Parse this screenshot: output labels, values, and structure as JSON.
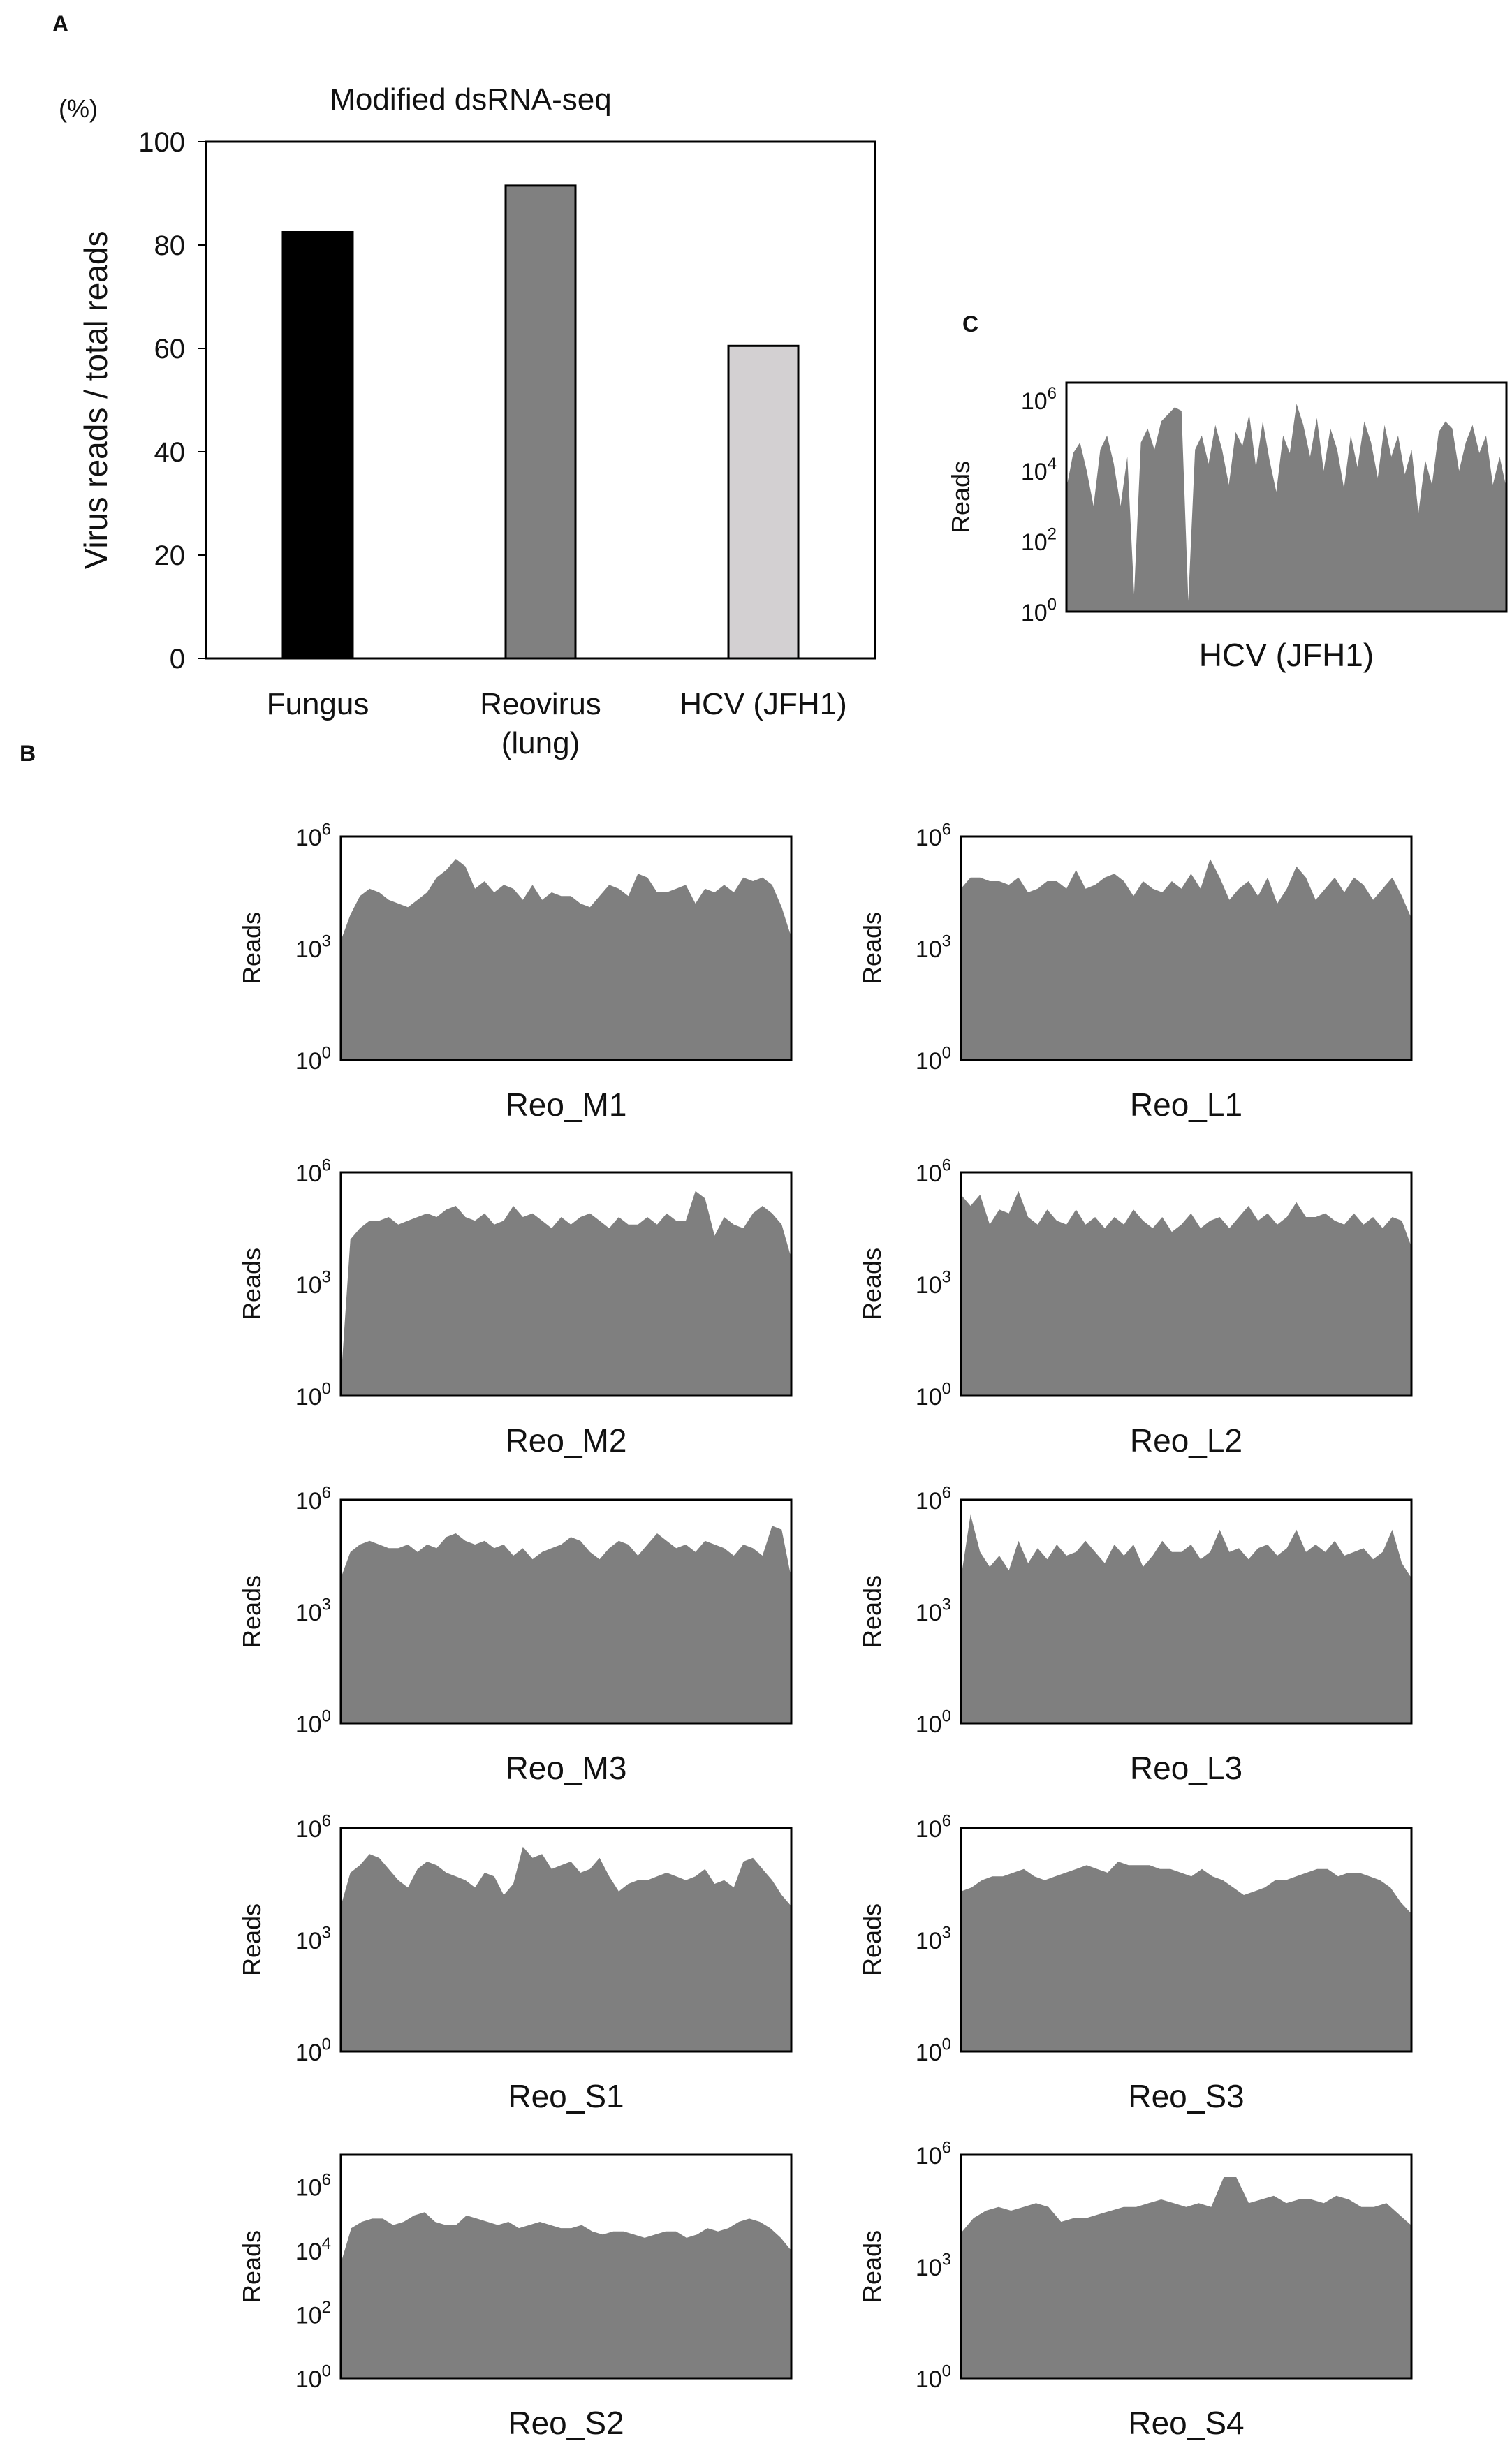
{
  "panel_labels": {
    "a": "A",
    "b": "B",
    "c": "C"
  },
  "chart_data": [
    {
      "id": "A",
      "type": "bar",
      "title": "Modified dsRNA-seq",
      "unit_label": "(%)",
      "ylabel": "Virus reads / total reads",
      "xlabel": "",
      "ylim": [
        0,
        100
      ],
      "yticks": [
        "0",
        "20",
        "40",
        "60",
        "80",
        "100"
      ],
      "categories": [
        "Fungus",
        "Reovirus\n(lung)",
        "HCV (JFH1)"
      ],
      "values": [
        82.5,
        91.5,
        60.5
      ],
      "colors": [
        "#000000",
        "#808080",
        "#d3d0d2"
      ],
      "grid": false
    },
    {
      "id": "C",
      "type": "area",
      "scale": "log",
      "ylabel": "Reads",
      "xlabel": "HCV (JFH1)",
      "ylim_exp": [
        0,
        6.5
      ],
      "yticks": [
        {
          "base": "10",
          "exp": "0",
          "value": 0
        },
        {
          "base": "10",
          "exp": "2",
          "value": 2
        },
        {
          "base": "10",
          "exp": "4",
          "value": 4
        },
        {
          "base": "10",
          "exp": "6",
          "value": 6
        }
      ],
      "fill": "#7f7f7f",
      "values": [
        3.5,
        4.5,
        4.8,
        4.0,
        3.0,
        4.6,
        5.0,
        4.2,
        3.0,
        4.4,
        0.5,
        4.8,
        5.2,
        4.6,
        5.4,
        5.6,
        5.8,
        5.7,
        0.3,
        4.6,
        5.0,
        4.2,
        5.3,
        4.6,
        3.6,
        5.1,
        4.7,
        5.6,
        4.1,
        5.4,
        4.3,
        3.4,
        5.0,
        4.5,
        5.9,
        5.3,
        4.4,
        5.5,
        4.0,
        5.2,
        4.6,
        3.5,
        5.0,
        4.1,
        5.4,
        4.8,
        3.8,
        5.3,
        4.4,
        5.0,
        3.9,
        4.6,
        2.8,
        4.3,
        3.6,
        5.1,
        5.4,
        5.2,
        4.0,
        4.8,
        5.3,
        4.5,
        5.0,
        3.6,
        4.4,
        3.5
      ]
    },
    {
      "id": "Reo_M1",
      "type": "area",
      "scale": "log",
      "ylabel": "Reads",
      "xlabel": "Reo_M1",
      "ylim_exp": [
        0,
        6
      ],
      "yticks": [
        {
          "base": "10",
          "exp": "0",
          "value": 0
        },
        {
          "base": "10",
          "exp": "3",
          "value": 3
        },
        {
          "base": "10",
          "exp": "6",
          "value": 6
        }
      ],
      "fill": "#7f7f7f",
      "values": [
        3.2,
        3.9,
        4.4,
        4.6,
        4.5,
        4.3,
        4.2,
        4.1,
        4.3,
        4.5,
        4.9,
        5.1,
        5.4,
        5.2,
        4.6,
        4.8,
        4.5,
        4.7,
        4.6,
        4.3,
        4.7,
        4.3,
        4.5,
        4.4,
        4.4,
        4.2,
        4.1,
        4.4,
        4.7,
        4.6,
        4.4,
        5.0,
        4.9,
        4.5,
        4.5,
        4.6,
        4.7,
        4.2,
        4.6,
        4.5,
        4.7,
        4.5,
        4.9,
        4.8,
        4.9,
        4.7,
        4.1,
        3.3
      ]
    },
    {
      "id": "Reo_L1",
      "type": "area",
      "scale": "log",
      "ylabel": "Reads",
      "xlabel": "Reo_L1",
      "ylim_exp": [
        0,
        6
      ],
      "yticks": [
        {
          "base": "10",
          "exp": "0",
          "value": 0
        },
        {
          "base": "10",
          "exp": "3",
          "value": 3
        },
        {
          "base": "10",
          "exp": "6",
          "value": 6
        }
      ],
      "fill": "#7f7f7f",
      "values": [
        4.6,
        4.9,
        4.9,
        4.8,
        4.8,
        4.7,
        4.9,
        4.5,
        4.6,
        4.8,
        4.8,
        4.6,
        5.1,
        4.6,
        4.7,
        4.9,
        5.0,
        4.8,
        4.4,
        4.8,
        4.6,
        4.5,
        4.8,
        4.6,
        5.0,
        4.6,
        5.4,
        4.9,
        4.3,
        4.6,
        4.8,
        4.4,
        4.9,
        4.2,
        4.6,
        5.2,
        4.9,
        4.3,
        4.6,
        4.9,
        4.5,
        4.9,
        4.7,
        4.3,
        4.6,
        4.9,
        4.4,
        3.8
      ]
    },
    {
      "id": "Reo_M2",
      "type": "area",
      "scale": "log",
      "ylabel": "Reads",
      "xlabel": "Reo_M2",
      "ylim_exp": [
        0,
        6
      ],
      "yticks": [
        {
          "base": "10",
          "exp": "0",
          "value": 0
        },
        {
          "base": "10",
          "exp": "3",
          "value": 3
        },
        {
          "base": "10",
          "exp": "6",
          "value": 6
        }
      ],
      "fill": "#7f7f7f",
      "values": [
        0.4,
        4.2,
        4.5,
        4.7,
        4.7,
        4.8,
        4.6,
        4.7,
        4.8,
        4.9,
        4.8,
        5.0,
        5.1,
        4.8,
        4.7,
        4.9,
        4.6,
        4.7,
        5.1,
        4.8,
        4.9,
        4.7,
        4.5,
        4.8,
        4.6,
        4.8,
        4.9,
        4.7,
        4.5,
        4.8,
        4.6,
        4.6,
        4.8,
        4.6,
        4.9,
        4.7,
        4.7,
        5.5,
        5.3,
        4.3,
        4.8,
        4.6,
        4.5,
        4.9,
        5.1,
        4.9,
        4.6,
        3.7
      ]
    },
    {
      "id": "Reo_L2",
      "type": "area",
      "scale": "log",
      "ylabel": "Reads",
      "xlabel": "Reo_L2",
      "ylim_exp": [
        0,
        6
      ],
      "yticks": [
        {
          "base": "10",
          "exp": "0",
          "value": 0
        },
        {
          "base": "10",
          "exp": "3",
          "value": 3
        },
        {
          "base": "10",
          "exp": "6",
          "value": 6
        }
      ],
      "fill": "#7f7f7f",
      "values": [
        5.4,
        5.1,
        5.4,
        4.6,
        5.0,
        4.9,
        5.5,
        4.8,
        4.6,
        5.0,
        4.7,
        4.6,
        5.0,
        4.6,
        4.8,
        4.5,
        4.8,
        4.6,
        5.0,
        4.7,
        4.5,
        4.8,
        4.4,
        4.6,
        4.9,
        4.5,
        4.7,
        4.8,
        4.5,
        4.8,
        5.1,
        4.7,
        4.9,
        4.6,
        4.8,
        5.2,
        4.8,
        4.8,
        4.9,
        4.7,
        4.6,
        4.9,
        4.6,
        4.8,
        4.5,
        4.8,
        4.7,
        4.0
      ]
    },
    {
      "id": "Reo_M3",
      "type": "area",
      "scale": "log",
      "ylabel": "Reads",
      "xlabel": "Reo_M3",
      "ylim_exp": [
        0,
        6
      ],
      "yticks": [
        {
          "base": "10",
          "exp": "0",
          "value": 0
        },
        {
          "base": "10",
          "exp": "3",
          "value": 3
        },
        {
          "base": "10",
          "exp": "6",
          "value": 6
        }
      ],
      "fill": "#7f7f7f",
      "values": [
        3.9,
        4.6,
        4.8,
        4.9,
        4.8,
        4.7,
        4.7,
        4.8,
        4.6,
        4.8,
        4.7,
        5.0,
        5.1,
        4.9,
        4.8,
        4.9,
        4.7,
        4.8,
        4.5,
        4.7,
        4.4,
        4.6,
        4.7,
        4.8,
        5.0,
        4.9,
        4.6,
        4.4,
        4.7,
        4.9,
        4.8,
        4.5,
        4.8,
        5.1,
        4.9,
        4.7,
        4.8,
        4.6,
        4.9,
        4.8,
        4.7,
        4.5,
        4.8,
        4.7,
        4.5,
        5.3,
        5.2,
        3.9
      ]
    },
    {
      "id": "Reo_L3",
      "type": "area",
      "scale": "log",
      "ylabel": "Reads",
      "xlabel": "Reo_L3",
      "ylim_exp": [
        0,
        6
      ],
      "yticks": [
        {
          "base": "10",
          "exp": "0",
          "value": 0
        },
        {
          "base": "10",
          "exp": "3",
          "value": 3
        },
        {
          "base": "10",
          "exp": "6",
          "value": 6
        }
      ],
      "fill": "#7f7f7f",
      "values": [
        3.9,
        5.6,
        4.6,
        4.2,
        4.5,
        4.1,
        4.9,
        4.3,
        4.7,
        4.4,
        4.8,
        4.5,
        4.6,
        4.9,
        4.6,
        4.3,
        4.8,
        4.5,
        4.8,
        4.2,
        4.5,
        4.9,
        4.6,
        4.6,
        4.8,
        4.4,
        4.6,
        5.2,
        4.6,
        4.7,
        4.4,
        4.7,
        4.8,
        4.5,
        4.7,
        5.2,
        4.6,
        4.8,
        4.6,
        4.9,
        4.5,
        4.6,
        4.7,
        4.4,
        4.6,
        5.2,
        4.3,
        3.9
      ]
    },
    {
      "id": "Reo_S1",
      "type": "area",
      "scale": "log",
      "ylabel": "Reads",
      "xlabel": "Reo_S1",
      "ylim_exp": [
        0,
        6
      ],
      "yticks": [
        {
          "base": "10",
          "exp": "0",
          "value": 0
        },
        {
          "base": "10",
          "exp": "3",
          "value": 3
        },
        {
          "base": "10",
          "exp": "6",
          "value": 6
        }
      ],
      "fill": "#7f7f7f",
      "values": [
        3.9,
        4.8,
        5.0,
        5.3,
        5.2,
        4.9,
        4.6,
        4.4,
        4.9,
        5.1,
        5.0,
        4.8,
        4.7,
        4.6,
        4.4,
        4.8,
        4.7,
        4.2,
        4.5,
        5.5,
        5.2,
        5.3,
        4.9,
        5.0,
        5.1,
        4.8,
        4.9,
        5.2,
        4.7,
        4.3,
        4.5,
        4.6,
        4.6,
        4.7,
        4.8,
        4.7,
        4.6,
        4.7,
        4.9,
        4.5,
        4.6,
        4.4,
        5.1,
        5.2,
        4.9,
        4.6,
        4.2,
        3.9
      ]
    },
    {
      "id": "Reo_S3",
      "type": "area",
      "scale": "log",
      "ylabel": "Reads",
      "xlabel": "Reo_S3",
      "ylim_exp": [
        0,
        6
      ],
      "yticks": [
        {
          "base": "10",
          "exp": "0",
          "value": 0
        },
        {
          "base": "10",
          "exp": "3",
          "value": 3
        },
        {
          "base": "10",
          "exp": "6",
          "value": 6
        }
      ],
      "fill": "#7f7f7f",
      "values": [
        4.3,
        4.4,
        4.6,
        4.7,
        4.7,
        4.8,
        4.9,
        4.7,
        4.6,
        4.7,
        4.8,
        4.9,
        5.0,
        4.9,
        4.8,
        5.1,
        5.0,
        5.0,
        5.0,
        4.9,
        4.9,
        4.8,
        4.7,
        4.9,
        4.7,
        4.6,
        4.4,
        4.2,
        4.3,
        4.4,
        4.6,
        4.6,
        4.7,
        4.8,
        4.9,
        4.9,
        4.7,
        4.8,
        4.8,
        4.7,
        4.6,
        4.4,
        4.0,
        3.7
      ]
    },
    {
      "id": "Reo_S2",
      "type": "area",
      "scale": "log",
      "ylabel": "Reads",
      "xlabel": "Reo_S2",
      "ylim_exp": [
        0,
        7
      ],
      "yticks": [
        {
          "base": "10",
          "exp": "0",
          "value": 0
        },
        {
          "base": "10",
          "exp": "2",
          "value": 2
        },
        {
          "base": "10",
          "exp": "4",
          "value": 4
        },
        {
          "base": "10",
          "exp": "6",
          "value": 6
        }
      ],
      "fill": "#7f7f7f",
      "values": [
        3.6,
        4.7,
        4.9,
        5.0,
        5.0,
        4.8,
        4.9,
        5.1,
        5.2,
        4.9,
        4.8,
        4.8,
        5.1,
        5.0,
        4.9,
        4.8,
        4.9,
        4.7,
        4.8,
        4.9,
        4.8,
        4.7,
        4.7,
        4.8,
        4.6,
        4.5,
        4.6,
        4.6,
        4.5,
        4.4,
        4.5,
        4.6,
        4.6,
        4.4,
        4.5,
        4.7,
        4.6,
        4.7,
        4.9,
        5.0,
        4.9,
        4.7,
        4.4,
        4.0
      ]
    },
    {
      "id": "Reo_S4",
      "type": "area",
      "scale": "log",
      "ylabel": "Reads",
      "xlabel": "Reo_S4",
      "ylim_exp": [
        0,
        6
      ],
      "yticks": [
        {
          "base": "10",
          "exp": "0",
          "value": 0
        },
        {
          "base": "10",
          "exp": "3",
          "value": 3
        },
        {
          "base": "10",
          "exp": "6",
          "value": 6
        }
      ],
      "fill": "#7f7f7f",
      "values": [
        3.9,
        4.3,
        4.5,
        4.6,
        4.5,
        4.6,
        4.7,
        4.6,
        4.2,
        4.3,
        4.3,
        4.4,
        4.5,
        4.6,
        4.6,
        4.7,
        4.8,
        4.7,
        4.6,
        4.7,
        4.6,
        5.4,
        5.4,
        4.7,
        4.8,
        4.9,
        4.7,
        4.8,
        4.8,
        4.7,
        4.9,
        4.8,
        4.6,
        4.6,
        4.7,
        4.4,
        4.1
      ]
    }
  ]
}
